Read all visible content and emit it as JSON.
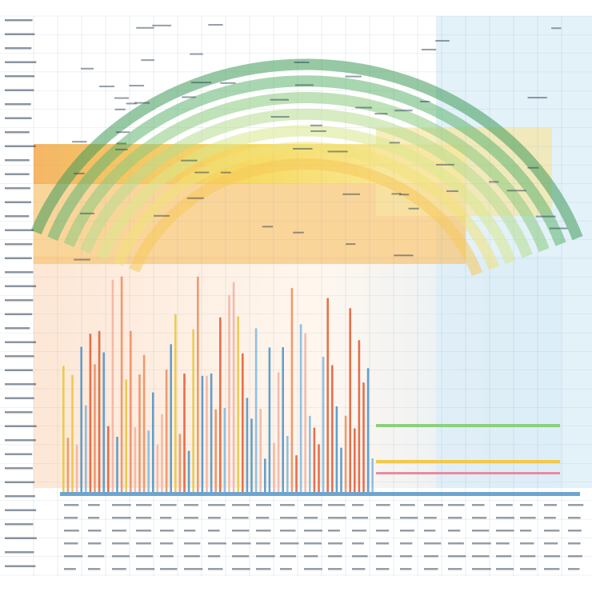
{
  "chart_data": {
    "type": "bar",
    "title": "",
    "subtitle": "",
    "xlabel": "",
    "ylabel": "",
    "categories": [],
    "values": [],
    "series": [],
    "grid": true,
    "legend": "none",
    "note": ""
  },
  "colors": {
    "background": "#ffffff",
    "arc_green": "#6cbf7a",
    "band_yellow": "#f3d33a",
    "band_orange": "#f0a24a",
    "panel_blue": "#cfe6f4",
    "bar_red": "#e4572e",
    "bar_blue": "#4a8fc4",
    "bar_yellow": "#e8c43a",
    "grid": "#9fb3c8",
    "text": "#2c3e50"
  }
}
